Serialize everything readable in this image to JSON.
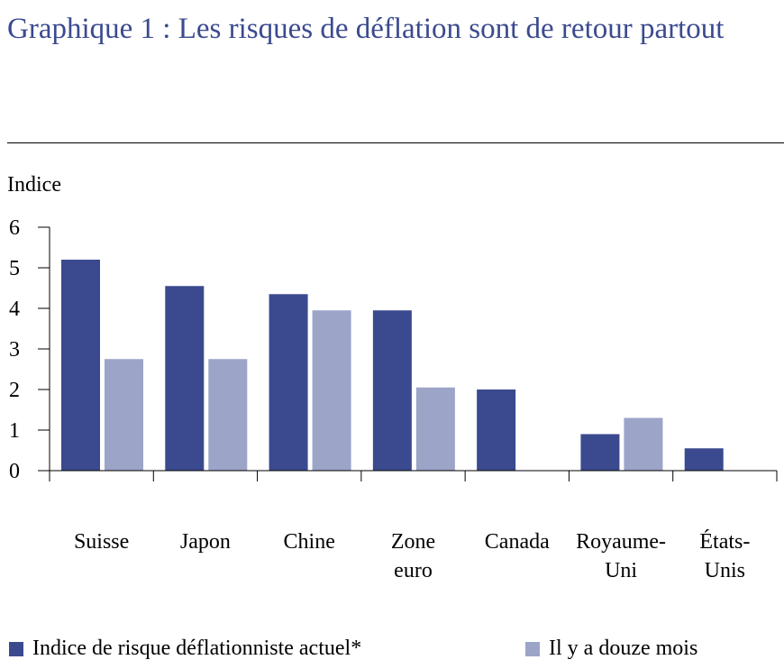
{
  "title": "Graphique 1 : Les risques de déflation sont de retour partout",
  "colors": {
    "series_current": "#3b4a8f",
    "series_previous": "#9ca4c8",
    "title": "#3b4a8f"
  },
  "chart_data": {
    "type": "bar",
    "ylabel": "Indice",
    "ylim": [
      0,
      6
    ],
    "yticks": [
      "0",
      "1",
      "2",
      "3",
      "4",
      "5",
      "6"
    ],
    "categories": [
      [
        "Suisse"
      ],
      [
        "Japon"
      ],
      [
        "Chine"
      ],
      [
        "Zone",
        "euro"
      ],
      [
        "Canada"
      ],
      [
        "Royaume-",
        "Uni"
      ],
      [
        "États-",
        "Unis"
      ]
    ],
    "series": [
      {
        "name": "Indice de risque déflationniste actuel*",
        "values": [
          5.2,
          4.55,
          4.35,
          3.95,
          2.0,
          0.9,
          0.55
        ]
      },
      {
        "name": "Il y a douze mois",
        "values": [
          2.75,
          2.75,
          3.95,
          2.05,
          0.0,
          1.3,
          0.0
        ]
      }
    ],
    "grid": false,
    "legend_position": "bottom"
  }
}
